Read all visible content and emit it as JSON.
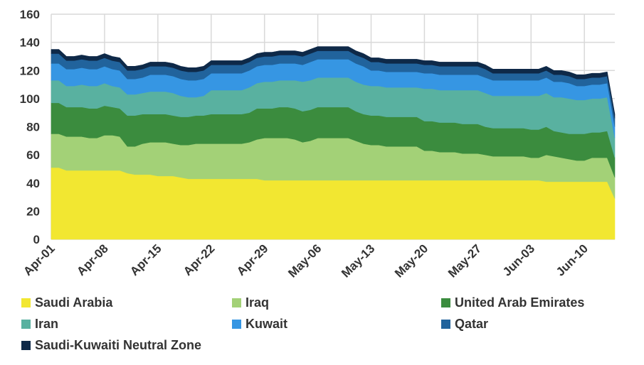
{
  "chart_data": {
    "type": "area",
    "stacked": true,
    "ylim": [
      0,
      160
    ],
    "yticks": [
      0,
      20,
      40,
      60,
      80,
      100,
      120,
      140,
      160
    ],
    "grid": "both",
    "legend_position": "bottom",
    "xticks": [
      "Apr-01",
      "Apr-08",
      "Apr-15",
      "Apr-22",
      "Apr-29",
      "May-06",
      "May-13",
      "May-20",
      "May-27",
      "Jun-03",
      "Jun-10"
    ],
    "x": [
      "Apr-01",
      "Apr-02",
      "Apr-03",
      "Apr-04",
      "Apr-05",
      "Apr-06",
      "Apr-07",
      "Apr-08",
      "Apr-09",
      "Apr-10",
      "Apr-11",
      "Apr-12",
      "Apr-13",
      "Apr-14",
      "Apr-15",
      "Apr-16",
      "Apr-17",
      "Apr-18",
      "Apr-19",
      "Apr-20",
      "Apr-21",
      "Apr-22",
      "Apr-23",
      "Apr-24",
      "Apr-25",
      "Apr-26",
      "Apr-27",
      "Apr-28",
      "Apr-29",
      "Apr-30",
      "May-01",
      "May-02",
      "May-03",
      "May-04",
      "May-05",
      "May-06",
      "May-07",
      "May-08",
      "May-09",
      "May-10",
      "May-11",
      "May-12",
      "May-13",
      "May-14",
      "May-15",
      "May-16",
      "May-17",
      "May-18",
      "May-19",
      "May-20",
      "May-21",
      "May-22",
      "May-23",
      "May-24",
      "May-25",
      "May-26",
      "May-27",
      "May-28",
      "May-29",
      "May-30",
      "May-31",
      "Jun-01",
      "Jun-02",
      "Jun-03",
      "Jun-04",
      "Jun-05",
      "Jun-06",
      "Jun-07",
      "Jun-08",
      "Jun-09",
      "Jun-10",
      "Jun-11",
      "Jun-12",
      "Jun-13",
      "Jun-14"
    ],
    "series": [
      {
        "name": "Saudi Arabia",
        "color": "#f2e731",
        "values": [
          51,
          51,
          49,
          49,
          49,
          49,
          49,
          49,
          49,
          49,
          47,
          46,
          46,
          46,
          45,
          45,
          45,
          44,
          43,
          43,
          43,
          43,
          43,
          43,
          43,
          43,
          43,
          43,
          42,
          42,
          42,
          42,
          42,
          42,
          42,
          42,
          42,
          42,
          42,
          42,
          42,
          42,
          42,
          42,
          42,
          42,
          42,
          42,
          42,
          42,
          42,
          42,
          42,
          42,
          42,
          42,
          42,
          42,
          42,
          42,
          42,
          42,
          42,
          42,
          42,
          41,
          41,
          41,
          41,
          41,
          41,
          41,
          41,
          41,
          29
        ]
      },
      {
        "name": "Iraq",
        "color": "#a3d177",
        "values": [
          24,
          24,
          24,
          24,
          24,
          23,
          23,
          25,
          25,
          24,
          19,
          20,
          22,
          23,
          24,
          24,
          23,
          23,
          24,
          25,
          25,
          25,
          25,
          25,
          25,
          25,
          26,
          28,
          30,
          30,
          30,
          30,
          29,
          27,
          28,
          30,
          30,
          30,
          30,
          30,
          28,
          26,
          25,
          25,
          24,
          24,
          24,
          24,
          24,
          21,
          21,
          20,
          20,
          20,
          19,
          19,
          19,
          18,
          17,
          17,
          17,
          17,
          17,
          16,
          16,
          19,
          18,
          17,
          16,
          15,
          15,
          17,
          17,
          17,
          15
        ]
      },
      {
        "name": "United Arab Emirates",
        "color": "#3b8c3e",
        "values": [
          22,
          22,
          21,
          21,
          21,
          21,
          21,
          21,
          20,
          20,
          22,
          22,
          21,
          20,
          20,
          20,
          20,
          20,
          20,
          20,
          20,
          21,
          21,
          21,
          21,
          21,
          21,
          22,
          21,
          21,
          22,
          22,
          22,
          22,
          22,
          22,
          22,
          22,
          22,
          22,
          21,
          21,
          21,
          21,
          21,
          21,
          21,
          21,
          21,
          21,
          21,
          21,
          21,
          21,
          21,
          21,
          21,
          20,
          20,
          20,
          20,
          20,
          20,
          20,
          20,
          20,
          18,
          18,
          18,
          19,
          19,
          18,
          18,
          19,
          14
        ]
      },
      {
        "name": "Iran",
        "color": "#59b1a0",
        "values": [
          16,
          16,
          15,
          15,
          16,
          16,
          16,
          16,
          15,
          15,
          15,
          15,
          15,
          16,
          16,
          16,
          16,
          15,
          14,
          13,
          14,
          17,
          17,
          17,
          17,
          17,
          18,
          18,
          19,
          19,
          19,
          19,
          20,
          21,
          21,
          21,
          21,
          21,
          21,
          21,
          21,
          21,
          21,
          21,
          21,
          21,
          21,
          21,
          21,
          23,
          23,
          23,
          23,
          23,
          24,
          24,
          24,
          24,
          23,
          23,
          23,
          23,
          23,
          24,
          24,
          24,
          24,
          25,
          25,
          24,
          24,
          24,
          24,
          24,
          14
        ]
      },
      {
        "name": "Kuwait",
        "color": "#3696e3",
        "values": [
          12,
          12,
          12,
          12,
          12,
          12,
          12,
          12,
          12,
          12,
          11,
          11,
          11,
          12,
          12,
          12,
          12,
          12,
          12,
          12,
          12,
          12,
          12,
          12,
          12,
          12,
          12,
          12,
          12,
          12,
          12,
          12,
          12,
          12,
          13,
          13,
          13,
          13,
          13,
          13,
          13,
          13,
          11,
          11,
          11,
          11,
          11,
          11,
          11,
          11,
          11,
          11,
          11,
          11,
          11,
          11,
          11,
          11,
          11,
          11,
          11,
          11,
          11,
          11,
          11,
          11,
          11,
          11,
          11,
          10,
          10,
          10,
          10,
          10,
          8
        ]
      },
      {
        "name": "Qatar",
        "color": "#21639c",
        "values": [
          7,
          7,
          6,
          6,
          6,
          6,
          6,
          6,
          6,
          6,
          6,
          6,
          6,
          6,
          6,
          6,
          6,
          6,
          6,
          6,
          6,
          6,
          6,
          6,
          6,
          6,
          6,
          6,
          6,
          6,
          6,
          6,
          6,
          6,
          6,
          6,
          6,
          6,
          6,
          6,
          6,
          6,
          6,
          6,
          6,
          6,
          6,
          6,
          6,
          6,
          6,
          6,
          6,
          6,
          6,
          6,
          6,
          6,
          5,
          5,
          5,
          5,
          5,
          5,
          5,
          5,
          5,
          5,
          5,
          5,
          5,
          5,
          5,
          5,
          6
        ]
      },
      {
        "name": "Saudi-Kuwaiti Neutral Zone",
        "color": "#0e2948",
        "values": [
          3,
          3,
          3,
          3,
          3,
          3,
          3,
          3,
          3,
          3,
          3,
          3,
          3,
          3,
          3,
          3,
          3,
          3,
          3,
          3,
          3,
          3,
          3,
          3,
          3,
          3,
          3,
          3,
          3,
          3,
          3,
          3,
          3,
          3,
          3,
          3,
          3,
          3,
          3,
          3,
          3,
          3,
          3,
          3,
          3,
          3,
          3,
          3,
          3,
          3,
          3,
          3,
          3,
          3,
          3,
          3,
          3,
          3,
          3,
          3,
          3,
          3,
          3,
          3,
          3,
          3,
          3,
          3,
          3,
          3,
          3,
          3,
          3,
          3,
          3
        ]
      }
    ]
  }
}
